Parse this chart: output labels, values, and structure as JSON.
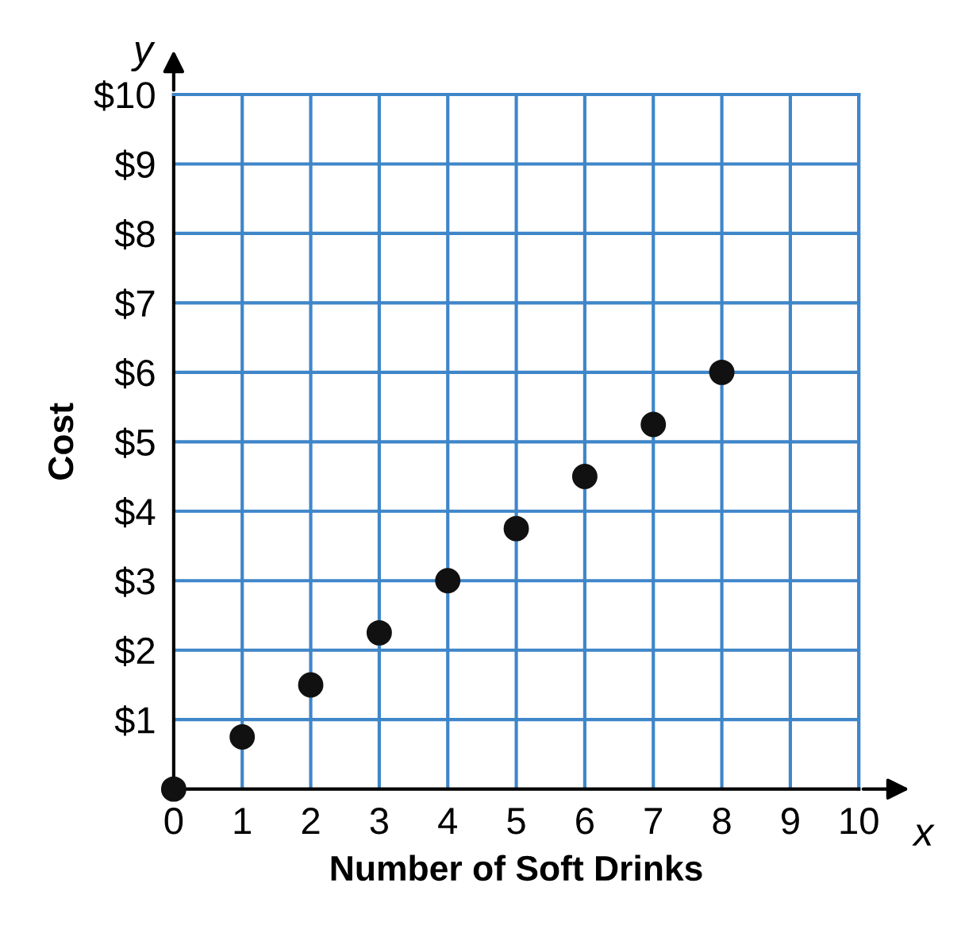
{
  "chart_data": {
    "type": "scatter",
    "xlabel": "Number of Soft Drinks",
    "ylabel": "Cost",
    "annotations": [
      "x",
      "y"
    ],
    "x": [
      0,
      1,
      2,
      3,
      4,
      5,
      6,
      7,
      8
    ],
    "series": [
      {
        "color": "#111111",
        "values": [
          0,
          0.75,
          1.5,
          2.25,
          3,
          3.75,
          4.5,
          5.25,
          6
        ]
      }
    ],
    "xlim": [
      0,
      10
    ],
    "ylim": [
      0,
      10
    ],
    "xticks": [
      0,
      1,
      2,
      3,
      4,
      5,
      6,
      7,
      8,
      9,
      10
    ],
    "yticks": [
      {
        "value": 1,
        "label": "$1"
      },
      {
        "value": 2,
        "label": "$2"
      },
      {
        "value": 3,
        "label": "$3"
      },
      {
        "value": 4,
        "label": "$4"
      },
      {
        "value": 5,
        "label": "$5"
      },
      {
        "value": 6,
        "label": "$6"
      },
      {
        "value": 7,
        "label": "$7"
      },
      {
        "value": 8,
        "label": "$8"
      },
      {
        "value": 9,
        "label": "$9"
      },
      {
        "value": 10,
        "label": "$10"
      }
    ],
    "grid": true,
    "marker": "circle",
    "legend": false
  }
}
